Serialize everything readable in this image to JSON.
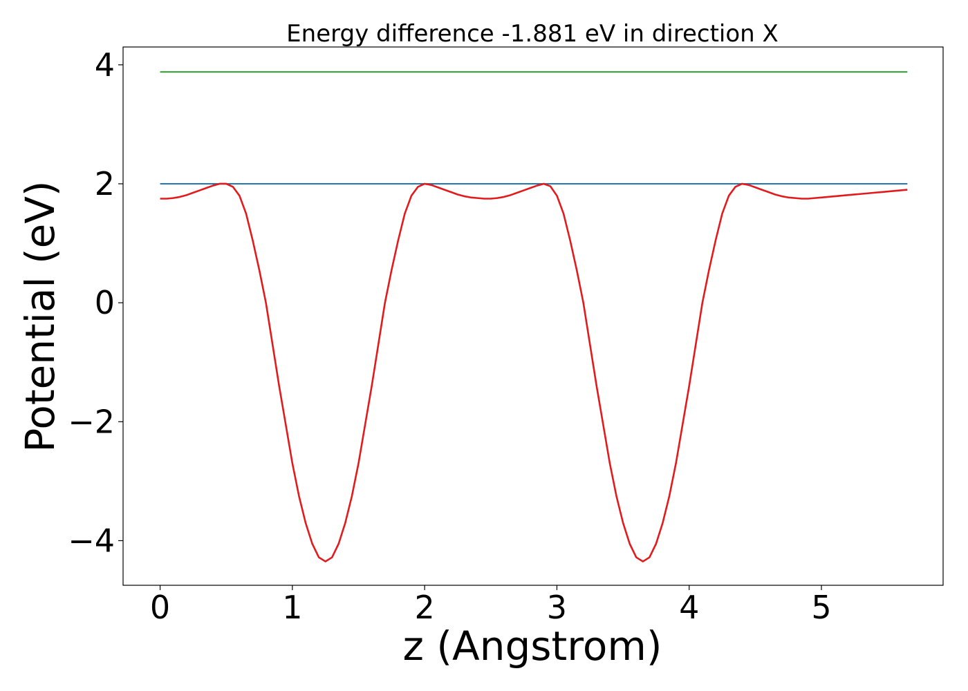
{
  "chart_data": {
    "type": "line",
    "title": "Energy difference -1.881 eV in direction X",
    "xlabel": "z (Angstrom)",
    "ylabel": "Potential (eV)",
    "xlim": [
      -0.28,
      5.92
    ],
    "ylim": [
      -4.75,
      4.3
    ],
    "xticks": [
      0,
      1,
      2,
      3,
      4,
      5
    ],
    "xtick_labels": [
      "0",
      "1",
      "2",
      "3",
      "4",
      "5"
    ],
    "yticks": [
      4,
      2,
      0,
      -2,
      -4
    ],
    "ytick_labels": [
      "4",
      "2",
      "0",
      "−2",
      "−4"
    ],
    "grid": false,
    "legend": "none",
    "series": [
      {
        "color": "#2ca02c",
        "x": [
          0,
          5.65
        ],
        "y": [
          3.88,
          3.88
        ]
      },
      {
        "color": "#1f77b4",
        "x": [
          0,
          5.65
        ],
        "y": [
          2.0,
          2.0
        ]
      },
      {
        "color": "#e31a1c",
        "x": [
          0,
          0.05,
          0.1,
          0.15,
          0.2,
          0.25,
          0.3,
          0.35,
          0.4,
          0.45,
          0.5,
          0.55,
          0.6,
          0.65,
          0.7,
          0.75,
          0.8,
          0.85,
          0.9,
          0.95,
          1.0,
          1.05,
          1.1,
          1.15,
          1.2,
          1.25,
          1.3,
          1.35,
          1.4,
          1.45,
          1.5,
          1.55,
          1.6,
          1.65,
          1.7,
          1.75,
          1.8,
          1.85,
          1.9,
          1.95,
          2.0,
          2.05,
          2.1,
          2.15,
          2.2,
          2.25,
          2.3,
          2.35,
          2.4,
          2.45,
          2.5,
          2.55,
          2.6,
          2.65,
          2.7,
          2.75,
          2.8,
          2.85,
          2.9,
          2.95,
          3.0,
          3.05,
          3.1,
          3.15,
          3.2,
          3.25,
          3.3,
          3.35,
          3.4,
          3.45,
          3.5,
          3.55,
          3.6,
          3.65,
          3.7,
          3.75,
          3.8,
          3.85,
          3.9,
          3.95,
          4.0,
          4.05,
          4.1,
          4.15,
          4.2,
          4.25,
          4.3,
          4.35,
          4.4,
          4.45,
          4.5,
          4.55,
          4.6,
          4.65,
          4.7,
          4.75,
          4.8,
          4.85,
          4.9,
          4.95,
          5.0,
          5.05,
          5.1,
          5.15,
          5.2,
          5.25,
          5.3,
          5.35,
          5.4,
          5.45,
          5.5,
          5.55,
          5.6,
          5.65
        ],
        "y": [
          1.75,
          1.75,
          1.76,
          1.78,
          1.81,
          1.85,
          1.89,
          1.93,
          1.97,
          2.0,
          2.0,
          1.95,
          1.8,
          1.5,
          1.05,
          0.55,
          0.0,
          -0.7,
          -1.4,
          -2.05,
          -2.7,
          -3.25,
          -3.7,
          -4.05,
          -4.28,
          -4.35,
          -4.28,
          -4.05,
          -3.7,
          -3.25,
          -2.7,
          -2.05,
          -1.4,
          -0.7,
          0.0,
          0.55,
          1.05,
          1.5,
          1.8,
          1.95,
          2.0,
          1.98,
          1.94,
          1.9,
          1.86,
          1.82,
          1.79,
          1.77,
          1.76,
          1.75,
          1.75,
          1.76,
          1.78,
          1.81,
          1.85,
          1.89,
          1.93,
          1.97,
          2.0,
          1.96,
          1.8,
          1.5,
          1.05,
          0.55,
          0.0,
          -0.7,
          -1.4,
          -2.05,
          -2.7,
          -3.25,
          -3.7,
          -4.05,
          -4.28,
          -4.35,
          -4.28,
          -4.05,
          -3.7,
          -3.25,
          -2.7,
          -2.05,
          -1.4,
          -0.7,
          0.0,
          0.55,
          1.05,
          1.5,
          1.8,
          1.95,
          2.0,
          1.98,
          1.94,
          1.9,
          1.86,
          1.82,
          1.79,
          1.77,
          1.76,
          1.75,
          1.75,
          1.76,
          1.77,
          1.78,
          1.79,
          1.8,
          1.81,
          1.82,
          1.83,
          1.84,
          1.85,
          1.86,
          1.87,
          1.88,
          1.89,
          1.9
        ]
      }
    ]
  }
}
